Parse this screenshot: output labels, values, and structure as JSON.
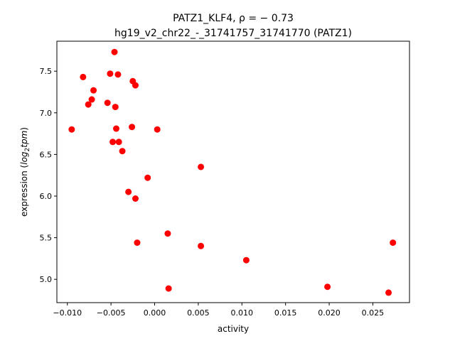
{
  "chart_data": {
    "type": "scatter",
    "title_line1": "PATZ1_KLF4, ρ = − 0.73",
    "title_line2": "hg19_v2_chr22_-_31741757_31741770 (PATZ1)",
    "xlabel": "activity",
    "ylabel_prefix": "expression (",
    "ylabel_math": "log",
    "ylabel_sub": "2",
    "ylabel_math2": "tpm",
    "ylabel_suffix": ")",
    "xlim": [
      -0.0112,
      0.0292
    ],
    "ylim": [
      4.72,
      7.86
    ],
    "x_ticks": [
      -0.01,
      -0.005,
      0.0,
      0.005,
      0.01,
      0.015,
      0.02,
      0.025
    ],
    "x_tick_labels": [
      "−0.010",
      "−0.005",
      "0.000",
      "0.005",
      "0.010",
      "0.015",
      "0.020",
      "0.025"
    ],
    "y_ticks": [
      5.0,
      5.5,
      6.0,
      6.5,
      7.0,
      7.5
    ],
    "y_tick_labels": [
      "5.0",
      "5.5",
      "6.0",
      "6.5",
      "7.0",
      "7.5"
    ],
    "marker_color": "#ff0000",
    "grid": false,
    "points": [
      {
        "x": -0.0095,
        "y": 6.8
      },
      {
        "x": -0.0082,
        "y": 7.43
      },
      {
        "x": -0.0076,
        "y": 7.1
      },
      {
        "x": -0.0072,
        "y": 7.16
      },
      {
        "x": -0.007,
        "y": 7.27
      },
      {
        "x": -0.0054,
        "y": 7.12
      },
      {
        "x": -0.0051,
        "y": 7.47
      },
      {
        "x": -0.0048,
        "y": 6.65
      },
      {
        "x": -0.0046,
        "y": 7.73
      },
      {
        "x": -0.0045,
        "y": 7.07
      },
      {
        "x": -0.0044,
        "y": 6.81
      },
      {
        "x": -0.0042,
        "y": 7.46
      },
      {
        "x": -0.0041,
        "y": 6.65
      },
      {
        "x": -0.0037,
        "y": 6.54
      },
      {
        "x": -0.003,
        "y": 6.05
      },
      {
        "x": -0.0026,
        "y": 6.83
      },
      {
        "x": -0.0025,
        "y": 7.38
      },
      {
        "x": -0.0022,
        "y": 7.33
      },
      {
        "x": -0.0022,
        "y": 5.97
      },
      {
        "x": -0.002,
        "y": 5.44
      },
      {
        "x": -0.0008,
        "y": 6.22
      },
      {
        "x": 0.0003,
        "y": 6.8
      },
      {
        "x": 0.0015,
        "y": 5.55
      },
      {
        "x": 0.0016,
        "y": 4.89
      },
      {
        "x": 0.0053,
        "y": 6.35
      },
      {
        "x": 0.0053,
        "y": 5.4
      },
      {
        "x": 0.0105,
        "y": 5.23
      },
      {
        "x": 0.0198,
        "y": 4.91
      },
      {
        "x": 0.0268,
        "y": 4.84
      },
      {
        "x": 0.0273,
        "y": 5.44
      }
    ]
  }
}
